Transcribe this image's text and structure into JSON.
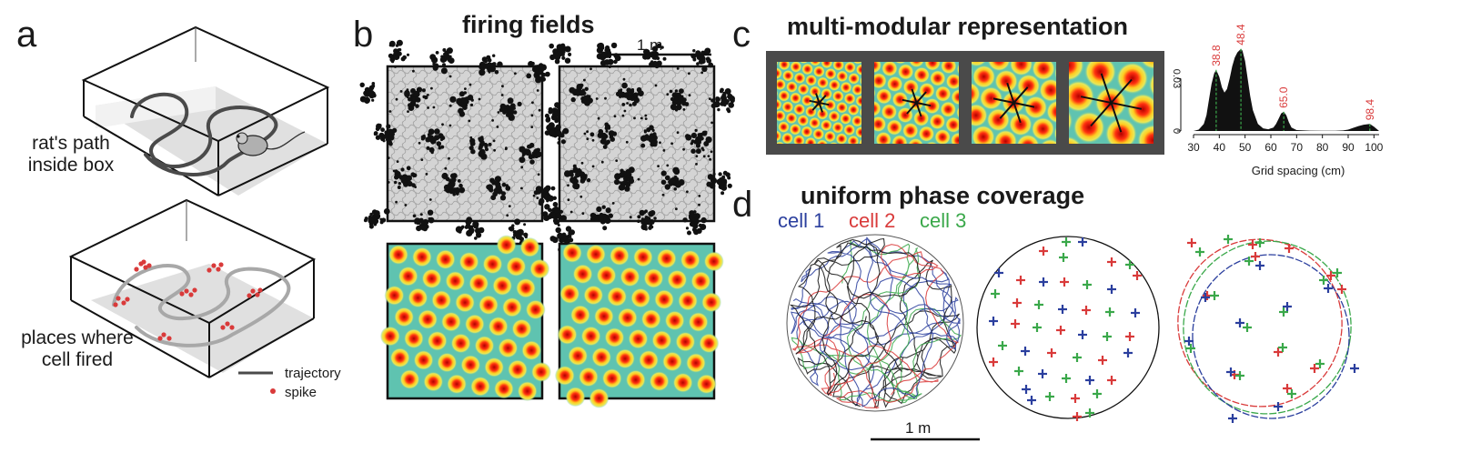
{
  "panels": {
    "a": {
      "letter": "a",
      "path_label_line1": "rat's path",
      "path_label_line2": "inside box",
      "fired_label_line1": "places where",
      "fired_label_line2": "cell fired",
      "legend_trajectory": "trajectory",
      "legend_spike": "spike"
    },
    "b": {
      "letter": "b",
      "title": "firing fields",
      "scalebar": "1 m"
    },
    "c": {
      "letter": "c",
      "title": "multi-modular representation",
      "module_count": 4
    },
    "d": {
      "letter": "d",
      "title": "uniform phase coverage",
      "legend": [
        {
          "label": "cell 1",
          "color": "#2b3f9e"
        },
        {
          "label": "cell 2",
          "color": "#d93a3a"
        },
        {
          "label": "cell 3",
          "color": "#3aa84a"
        }
      ],
      "scalebar": "1 m"
    }
  },
  "chart_data": {
    "type": "area",
    "xlabel": "Grid spacing (cm)",
    "ylabel": "",
    "xlim": [
      30,
      102
    ],
    "ylim": [
      0,
      0.05
    ],
    "x_ticks": [
      30,
      40,
      50,
      60,
      70,
      80,
      90,
      100
    ],
    "y_ticks": [
      0,
      0.03
    ],
    "y_tick_labels": [
      "0",
      "0.03"
    ],
    "peaks": [
      {
        "x": 38.8,
        "label": "38.8"
      },
      {
        "x": 48.4,
        "label": "48.4"
      },
      {
        "x": 65.0,
        "label": "65.0"
      },
      {
        "x": 98.4,
        "label": "98.4"
      }
    ],
    "density": {
      "x": [
        30,
        32,
        34,
        35,
        36,
        37,
        38,
        38.8,
        40,
        41,
        42,
        43,
        44,
        45,
        46,
        47,
        48.4,
        49,
        50,
        51,
        52,
        53,
        55,
        57,
        59,
        61,
        62,
        63,
        64,
        65,
        66,
        67,
        68,
        70,
        75,
        80,
        85,
        88,
        90,
        92,
        94,
        96,
        98.4,
        100,
        102
      ],
      "y": [
        0,
        0.0008,
        0.004,
        0.009,
        0.018,
        0.027,
        0.033,
        0.035,
        0.031,
        0.025,
        0.022,
        0.024,
        0.03,
        0.037,
        0.042,
        0.045,
        0.047,
        0.046,
        0.04,
        0.03,
        0.02,
        0.012,
        0.004,
        0.0015,
        0.001,
        0.002,
        0.004,
        0.007,
        0.01,
        0.011,
        0.009,
        0.005,
        0.002,
        0.0005,
        0.0002,
        0.0001,
        0.0001,
        0.0003,
        0.0008,
        0.0018,
        0.0028,
        0.0036,
        0.004,
        0.0025,
        0
      ]
    }
  }
}
